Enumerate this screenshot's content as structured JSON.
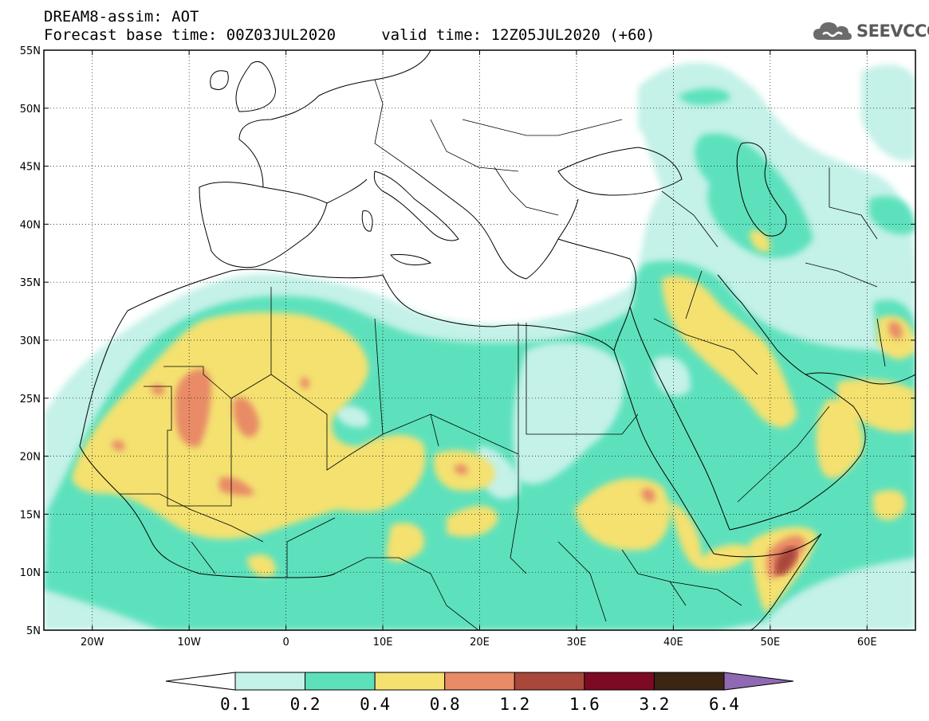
{
  "header": {
    "title_line1": "DREAM8-assim: AOT",
    "title_line2": "Forecast base time: 00Z03JUL2020     valid time: 12Z05JUL2020 (+60)"
  },
  "logo": {
    "text": "SEEVCCC",
    "icon": "cloud-logo-icon"
  },
  "map": {
    "lon_range": [
      -25,
      65
    ],
    "lat_range": [
      5,
      55
    ],
    "lat_ticks": [
      {
        "value": 55,
        "label": "55N"
      },
      {
        "value": 50,
        "label": "50N"
      },
      {
        "value": 45,
        "label": "45N"
      },
      {
        "value": 40,
        "label": "40N"
      },
      {
        "value": 35,
        "label": "35N"
      },
      {
        "value": 30,
        "label": "30N"
      },
      {
        "value": 25,
        "label": "25N"
      },
      {
        "value": 20,
        "label": "20N"
      },
      {
        "value": 15,
        "label": "15N"
      },
      {
        "value": 10,
        "label": "10N"
      },
      {
        "value": 5,
        "label": "5N"
      }
    ],
    "lon_ticks": [
      {
        "value": -20,
        "label": "20W"
      },
      {
        "value": -10,
        "label": "10W"
      },
      {
        "value": 0,
        "label": "0"
      },
      {
        "value": 10,
        "label": "10E"
      },
      {
        "value": 20,
        "label": "20E"
      },
      {
        "value": 30,
        "label": "30E"
      },
      {
        "value": 40,
        "label": "40E"
      },
      {
        "value": 50,
        "label": "50E"
      },
      {
        "value": 60,
        "label": "60E"
      }
    ],
    "grid": "dotted"
  },
  "colorbar": {
    "levels": [
      "0.1",
      "0.2",
      "0.4",
      "0.8",
      "1.2",
      "1.6",
      "3.2",
      "6.4"
    ],
    "colors": [
      "#ffffff",
      "#c4f1e8",
      "#5de1bd",
      "#f4e16f",
      "#e88b66",
      "#a9473a",
      "#7c0a24",
      "#3b2613",
      "#8f6ab3"
    ]
  }
}
